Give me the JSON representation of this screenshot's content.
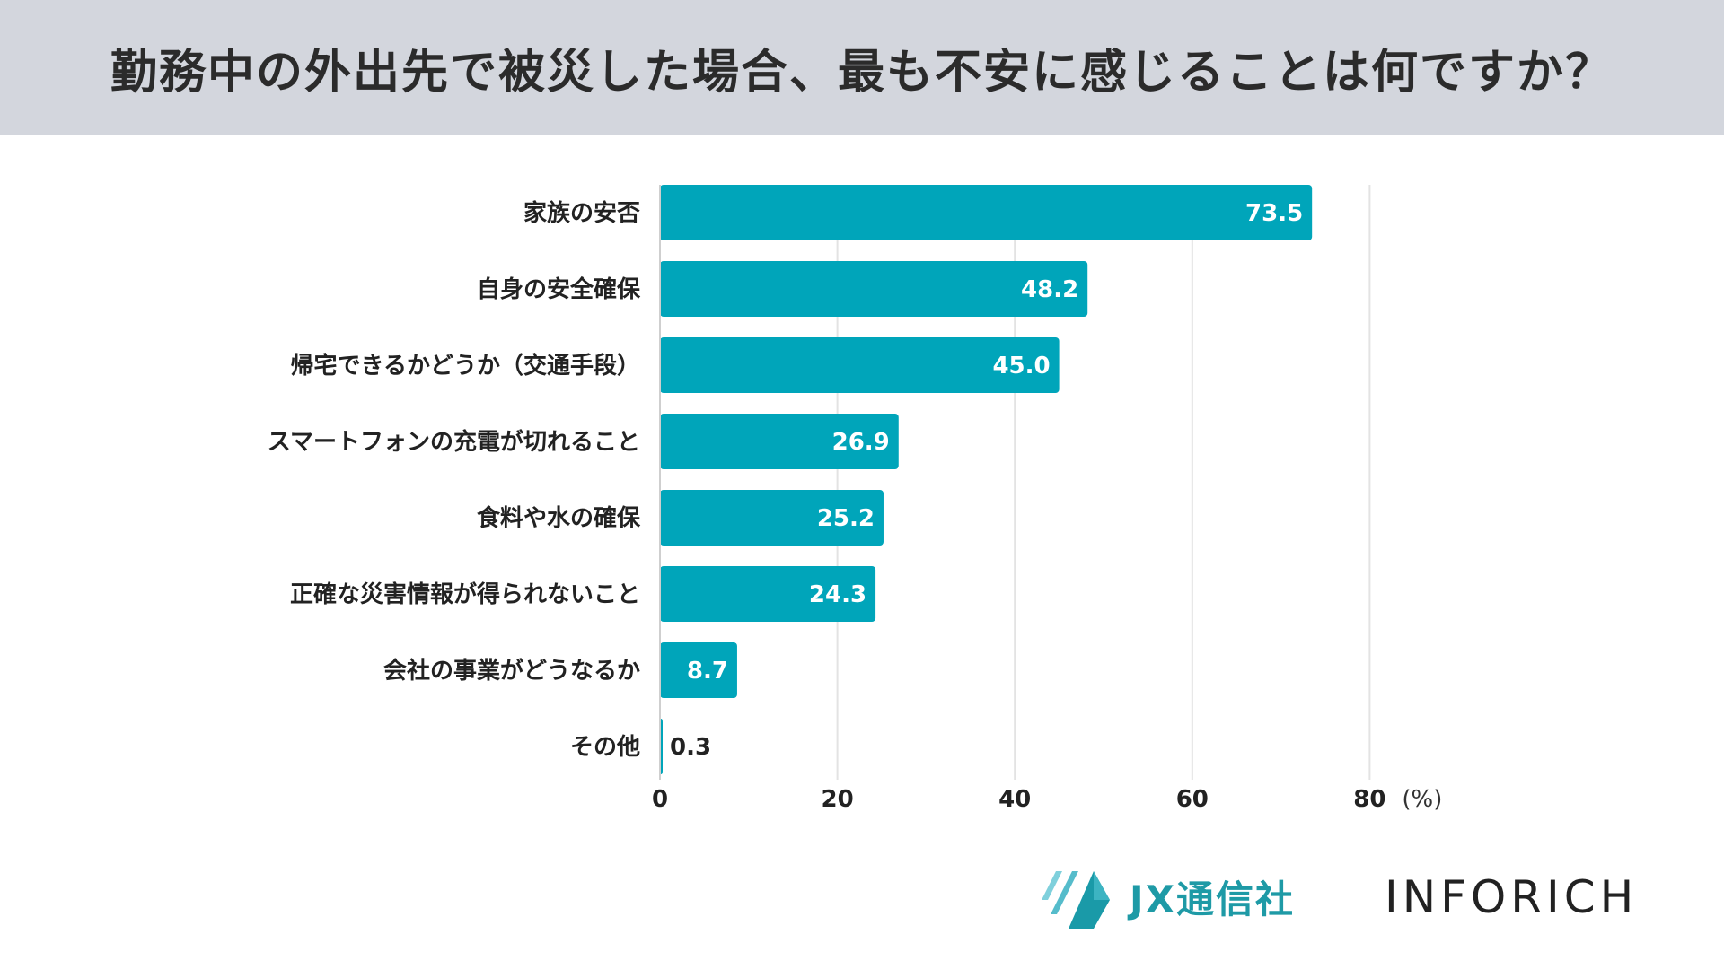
{
  "header": {
    "title": "勤務中の外出先で被災した場合、最も不安に感じることは何ですか？"
  },
  "colors": {
    "bar": "#00a5ba",
    "grid": "#e3e3e3",
    "value_inside": "#ffffff",
    "value_outside": "#222222"
  },
  "chart_data": {
    "type": "bar",
    "orientation": "horizontal",
    "categories": [
      "家族の安否",
      "自身の安全確保",
      "帰宅できるかどうか（交通手段）",
      "スマートフォンの充電が切れること",
      "食料や水の確保",
      "正確な災害情報が得られないこと",
      "会社の事業がどうなるか",
      "その他"
    ],
    "values": [
      73.5,
      48.2,
      45.0,
      26.9,
      25.2,
      24.3,
      8.7,
      0.3
    ],
    "value_labels": [
      "73.5",
      "48.2",
      "45.0",
      "26.9",
      "25.2",
      "24.3",
      "8.7",
      "0.3"
    ],
    "xlim": [
      0,
      80
    ],
    "ticks": [
      0,
      20,
      40,
      60,
      80
    ],
    "tick_labels": [
      "0",
      "20",
      "40",
      "60",
      "80"
    ],
    "unit": "(%)",
    "grid": true
  },
  "footer": {
    "jx_logo_text": "JX通信社",
    "inforich_logo_text": "INFORICH"
  }
}
